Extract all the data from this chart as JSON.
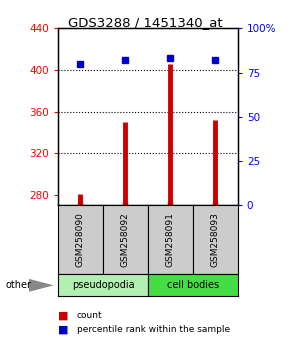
{
  "title": "GDS3288 / 1451340_at",
  "samples": [
    "GSM258090",
    "GSM258092",
    "GSM258091",
    "GSM258093"
  ],
  "groups": [
    "pseudopodia",
    "pseudopodia",
    "cell bodies",
    "cell bodies"
  ],
  "count_values": [
    281,
    350,
    406,
    352
  ],
  "percentile_values": [
    80,
    82,
    83,
    82
  ],
  "ylim_left": [
    270,
    440
  ],
  "ylim_right": [
    0,
    100
  ],
  "yticks_left": [
    280,
    320,
    360,
    400,
    440
  ],
  "yticks_right": [
    0,
    25,
    50,
    75,
    100
  ],
  "bar_color": "#cc0000",
  "dot_color": "#0000cc",
  "pseudopodia_color": "#b2f0b2",
  "cell_bodies_color": "#44dd44",
  "sample_box_color": "#cccccc",
  "legend_count_color": "#cc0000",
  "legend_pct_color": "#0000cc"
}
